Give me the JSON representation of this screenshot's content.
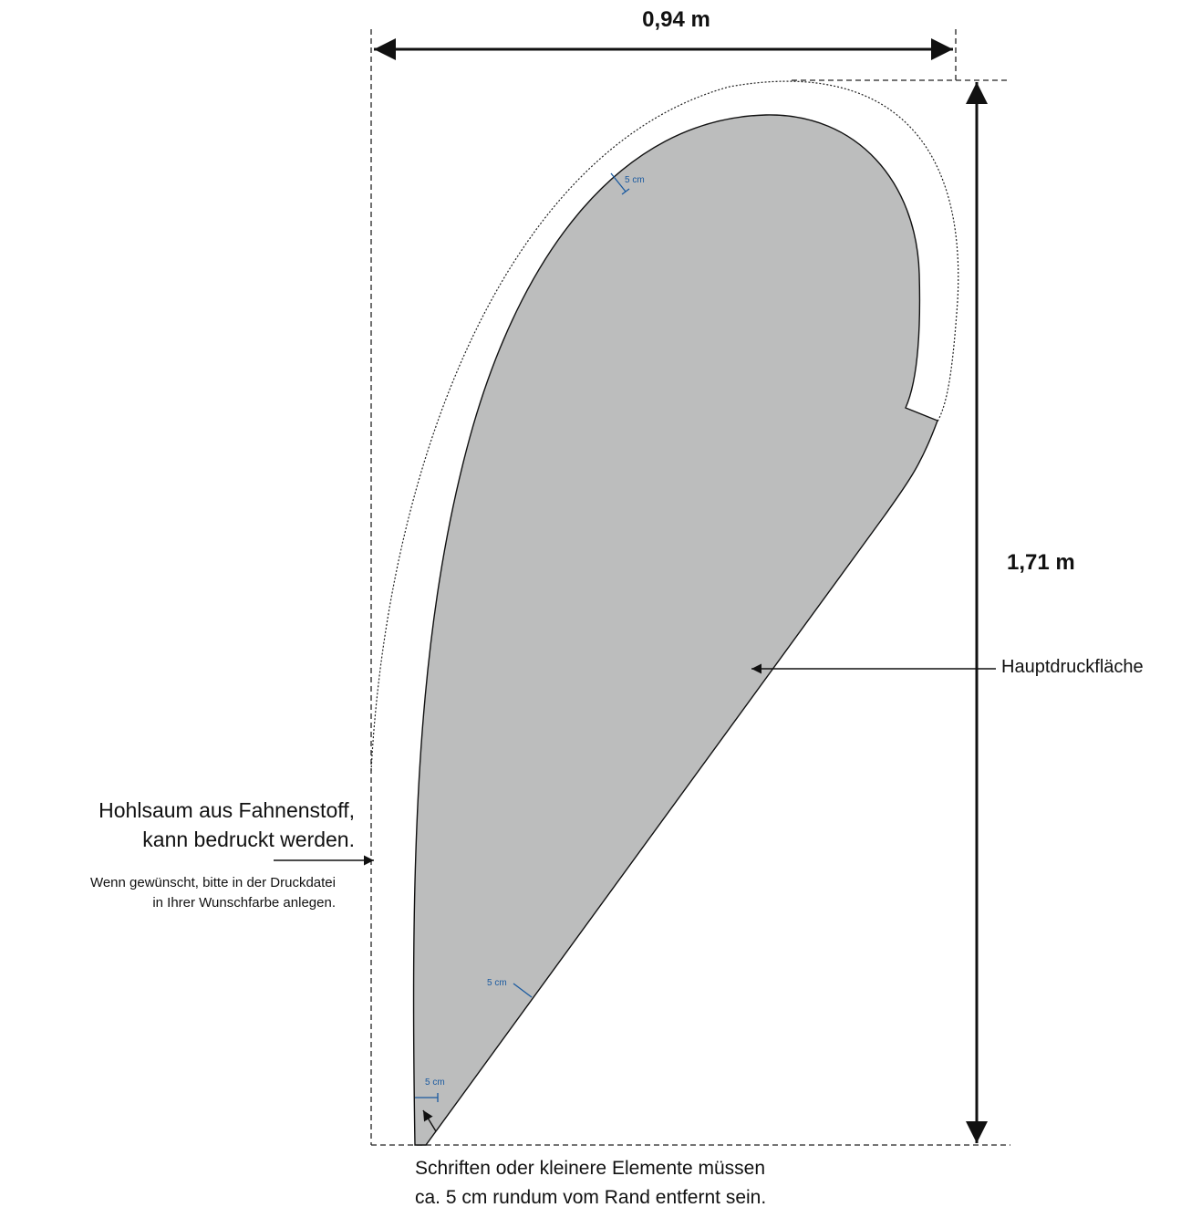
{
  "dimensions": {
    "width_label": "0,94 m",
    "height_label": "1,71 m"
  },
  "labels": {
    "main_print_area": "Hauptdruckfläche",
    "hem_title_line1": "Hohlsaum aus Fahnenstoff,",
    "hem_title_line2": "kann bedruckt werden.",
    "hem_note_line1": "Wenn gewünscht, bitte in der Druckdatei",
    "hem_note_line2": "in Ihrer Wunschfarbe anlegen.",
    "margin_note_line1": "Schriften oder kleinere Elemente müssen",
    "margin_note_line2": "ca. 5 cm rundum vom Rand entfernt sein."
  },
  "safety_margins": {
    "top": "5 cm",
    "edge": "5 cm",
    "bottom": "5 cm"
  },
  "colors": {
    "print_area": "#bcbdbd",
    "margin_marker": "#1a5aa0",
    "lines": "#111111"
  }
}
